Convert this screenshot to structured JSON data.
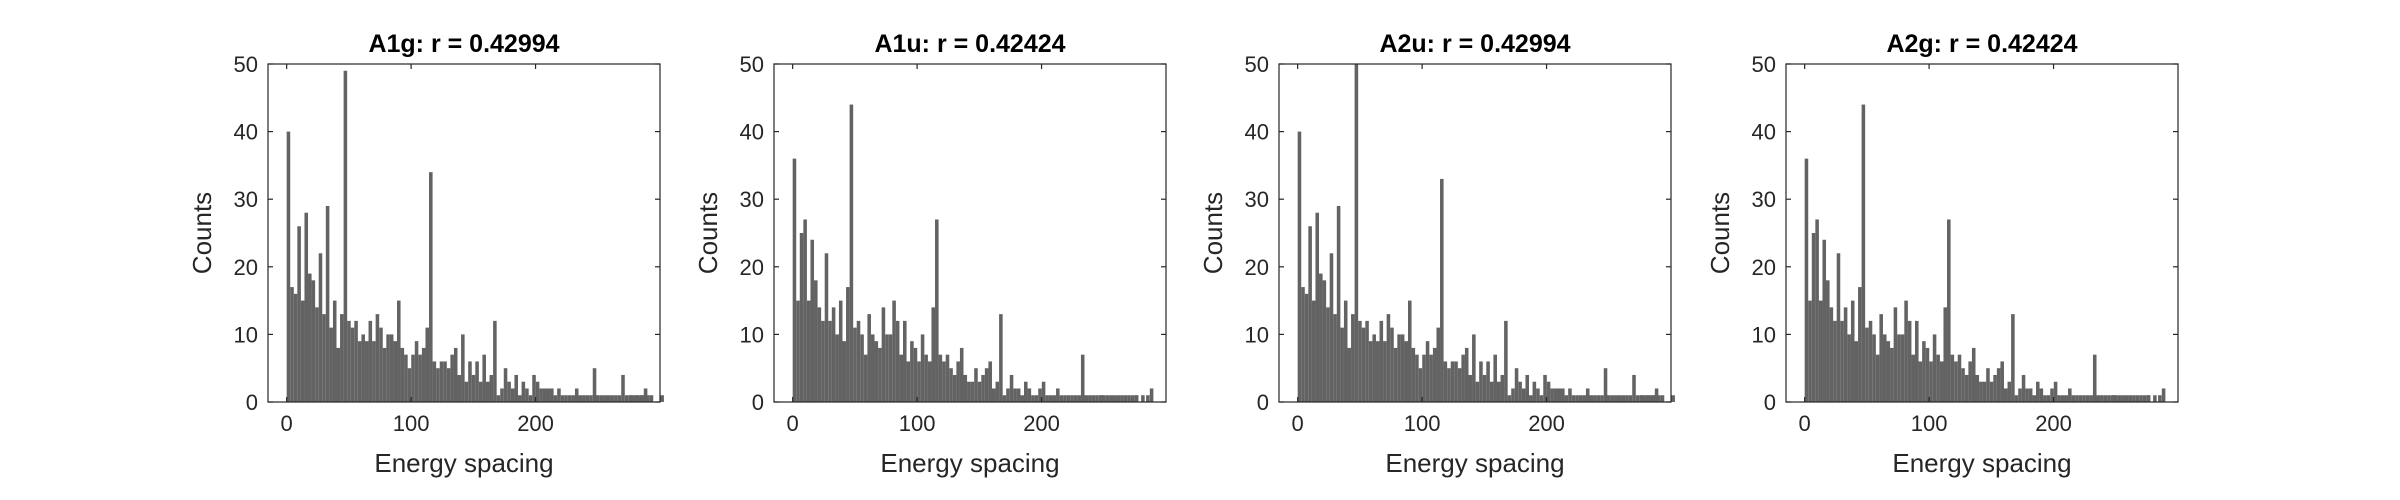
{
  "chart_data": [
    {
      "type": "histogram",
      "title": "A1g: r = 0.42994",
      "xlabel": "Energy spacing",
      "ylabel": "Counts",
      "xlim": [
        -15,
        300
      ],
      "ylim": [
        0,
        50
      ],
      "xticks": [
        0,
        100,
        200
      ],
      "yticks": [
        0,
        10,
        20,
        30,
        40,
        50
      ],
      "bin_width": 2.86,
      "values": [
        40,
        17,
        16,
        26,
        15,
        28,
        19,
        18,
        14,
        22,
        13,
        29,
        11,
        15,
        8,
        13,
        49,
        12,
        11,
        12,
        9,
        10,
        9,
        12,
        9,
        13,
        11,
        8,
        10,
        10,
        9,
        15,
        8,
        7,
        5,
        7,
        9,
        7,
        8,
        11,
        34,
        6,
        5,
        6,
        6,
        5,
        7,
        8,
        4,
        10,
        3,
        6,
        4,
        6,
        3,
        7,
        3,
        4,
        12,
        1,
        2,
        5,
        3,
        2,
        4,
        1,
        3,
        2,
        1,
        4,
        3,
        2,
        2,
        2,
        2,
        1,
        2,
        1,
        1,
        1,
        1,
        2,
        1,
        1,
        1,
        1,
        5,
        1,
        1,
        1,
        1,
        1,
        1,
        1,
        4,
        1,
        1,
        1,
        1,
        1,
        1,
        1,
        1,
        0,
        0,
        1,
        0,
        0,
        0,
        0,
        0,
        0,
        0,
        0,
        0,
        0,
        0,
        0,
        0,
        0,
        0,
        0,
        0,
        0,
        0,
        0,
        0,
        0,
        0,
        0,
        0,
        0,
        0,
        0,
        0,
        0,
        0,
        0,
        0,
        0,
        0,
        0,
        0,
        0,
        0,
        0,
        0,
        0,
        0,
        0,
        0,
        0,
        0,
        0,
        0,
        0,
        0,
        0,
        0,
        0,
        0,
        0,
        0,
        0,
        0,
        0,
        0,
        0,
        0,
        0,
        0,
        0,
        0,
        0,
        0,
        0,
        0,
        0,
        0,
        0,
        0,
        0,
        0,
        0,
        0,
        0,
        0,
        0,
        0,
        0,
        0,
        0,
        0,
        0,
        0,
        0,
        0,
        0,
        0,
        0
      ],
      "tail": {
        "x": [
          247,
          275,
          280,
          284,
          287
        ],
        "counts": [
          1,
          1,
          1,
          1,
          2
        ]
      }
    },
    {
      "type": "histogram",
      "title": "A1u: r = 0.42424",
      "xlabel": "Energy spacing",
      "ylabel": "Counts",
      "xlim": [
        -15,
        300
      ],
      "ylim": [
        0,
        50
      ],
      "xticks": [
        0,
        100,
        200
      ],
      "yticks": [
        0,
        10,
        20,
        30,
        40,
        50
      ],
      "bin_width": 2.86,
      "values": [
        36,
        15,
        25,
        27,
        15,
        24,
        18,
        14,
        12,
        22,
        12,
        14,
        10,
        15,
        9,
        17,
        44,
        11,
        12,
        10,
        7,
        13,
        10,
        9,
        8,
        14,
        10,
        10,
        15,
        12,
        7,
        12,
        6,
        9,
        8,
        6,
        10,
        7,
        6,
        14,
        27,
        7,
        6,
        7,
        5,
        4,
        6,
        8,
        4,
        3,
        3,
        5,
        3,
        4,
        5,
        6,
        2,
        3,
        13,
        1,
        2,
        4,
        2,
        2,
        1,
        3,
        2,
        1,
        1,
        2,
        3,
        1,
        1,
        1,
        2,
        1,
        1,
        1,
        1,
        1,
        1,
        7,
        1,
        1,
        1,
        1,
        1,
        1,
        1,
        1,
        1,
        1,
        1,
        1,
        1,
        1,
        1,
        0,
        0,
        0,
        0,
        0,
        0,
        0,
        0,
        0,
        0,
        0,
        0,
        0,
        0,
        0,
        0,
        0,
        0,
        0,
        0,
        0,
        0,
        0,
        0,
        0,
        0,
        0,
        0,
        0,
        0,
        0,
        0,
        0,
        0,
        0,
        0,
        0,
        0,
        0,
        0,
        0,
        0,
        0,
        0,
        0,
        0,
        0,
        0,
        0,
        0,
        0,
        0,
        0,
        0,
        0,
        0,
        0,
        0,
        0,
        0,
        0,
        0,
        0,
        0,
        0,
        0,
        0,
        0,
        0,
        0,
        0,
        0,
        0,
        0,
        0,
        0,
        0,
        0,
        0,
        0,
        0,
        0,
        0,
        0,
        0,
        0,
        0,
        0,
        0,
        0,
        0,
        0,
        0,
        0,
        0,
        0,
        0,
        0,
        0,
        0,
        0,
        0,
        0
      ],
      "tail": {
        "x": [
          247,
          275,
          280,
          284,
          287
        ],
        "counts": [
          1,
          1,
          1,
          1,
          2
        ]
      }
    },
    {
      "type": "histogram",
      "title": "A2u: r = 0.42994",
      "xlabel": "Energy spacing",
      "ylabel": "Counts",
      "xlim": [
        -15,
        300
      ],
      "ylim": [
        0,
        50
      ],
      "xticks": [
        0,
        100,
        200
      ],
      "yticks": [
        0,
        10,
        20,
        30,
        40,
        50
      ],
      "bin_width": 2.86,
      "values": [
        40,
        17,
        16,
        26,
        15,
        28,
        19,
        18,
        14,
        22,
        13,
        29,
        11,
        15,
        8,
        13,
        50,
        12,
        11,
        12,
        9,
        10,
        9,
        12,
        9,
        13,
        11,
        8,
        10,
        10,
        9,
        15,
        8,
        7,
        5,
        7,
        9,
        7,
        8,
        11,
        33,
        6,
        5,
        6,
        6,
        5,
        7,
        8,
        4,
        10,
        3,
        6,
        4,
        6,
        3,
        7,
        3,
        4,
        12,
        1,
        2,
        5,
        3,
        2,
        4,
        1,
        3,
        2,
        1,
        4,
        3,
        2,
        2,
        2,
        2,
        1,
        2,
        1,
        1,
        1,
        1,
        2,
        1,
        1,
        1,
        1,
        5,
        1,
        1,
        1,
        1,
        1,
        1,
        1,
        4,
        1,
        1,
        1,
        1,
        1,
        1,
        1,
        1,
        0,
        0,
        1,
        0,
        0,
        0,
        0,
        0,
        0,
        0,
        0,
        0,
        0,
        0,
        0,
        0,
        0,
        0,
        0,
        0,
        0,
        0,
        0,
        0,
        0,
        0,
        0,
        0,
        0,
        0,
        0,
        0,
        0,
        0,
        0,
        0,
        0,
        0,
        0,
        0,
        0,
        0,
        0,
        0,
        0,
        0,
        0,
        0,
        0,
        0,
        0,
        0,
        0,
        0,
        0,
        0,
        0,
        0,
        0,
        0,
        0,
        0,
        0,
        0,
        0,
        0,
        0,
        0,
        0,
        0,
        0,
        0,
        0,
        0,
        0,
        0,
        0,
        0,
        0,
        0,
        0,
        0,
        0,
        0,
        0,
        0,
        0,
        0,
        0,
        0,
        0,
        0,
        0,
        0,
        0,
        0,
        0
      ],
      "tail": {
        "x": [
          247,
          275,
          280,
          284,
          287
        ],
        "counts": [
          1,
          1,
          1,
          1,
          2
        ]
      }
    },
    {
      "type": "histogram",
      "title": "A2g: r = 0.42424",
      "xlabel": "Energy spacing",
      "ylabel": "Counts",
      "xlim": [
        -15,
        300
      ],
      "ylim": [
        0,
        50
      ],
      "xticks": [
        0,
        100,
        200
      ],
      "yticks": [
        0,
        10,
        20,
        30,
        40,
        50
      ],
      "bin_width": 2.86,
      "values": [
        36,
        15,
        25,
        27,
        15,
        24,
        18,
        14,
        12,
        22,
        12,
        14,
        10,
        15,
        9,
        17,
        44,
        11,
        12,
        10,
        7,
        13,
        10,
        9,
        8,
        14,
        10,
        10,
        15,
        12,
        7,
        12,
        6,
        9,
        8,
        6,
        10,
        7,
        6,
        14,
        27,
        7,
        6,
        7,
        5,
        4,
        6,
        8,
        4,
        3,
        3,
        5,
        3,
        4,
        5,
        6,
        2,
        3,
        13,
        1,
        2,
        4,
        2,
        2,
        1,
        3,
        2,
        1,
        1,
        2,
        3,
        1,
        1,
        1,
        2,
        1,
        1,
        1,
        1,
        1,
        1,
        7,
        1,
        1,
        1,
        1,
        1,
        1,
        1,
        1,
        1,
        1,
        1,
        1,
        1,
        1,
        1,
        0,
        0,
        0,
        0,
        0,
        0,
        0,
        0,
        0,
        0,
        0,
        0,
        0,
        0,
        0,
        0,
        0,
        0,
        0,
        0,
        0,
        0,
        0,
        0,
        0,
        0,
        0,
        0,
        0,
        0,
        0,
        0,
        0,
        0,
        0,
        0,
        0,
        0,
        0,
        0,
        0,
        0,
        0,
        0,
        0,
        0,
        0,
        0,
        0,
        0,
        0,
        0,
        0,
        0,
        0,
        0,
        0,
        0,
        0,
        0,
        0,
        0,
        0,
        0,
        0,
        0,
        0,
        0,
        0,
        0,
        0,
        0,
        0,
        0,
        0,
        0,
        0,
        0,
        0,
        0,
        0,
        0,
        0,
        0,
        0,
        0,
        0,
        0,
        0,
        0,
        0,
        0,
        0,
        0,
        0,
        0,
        0,
        0,
        0,
        0,
        0,
        0,
        0
      ],
      "tail": {
        "x": [
          247,
          275,
          280,
          284,
          287
        ],
        "counts": [
          1,
          1,
          1,
          1,
          2
        ]
      }
    }
  ],
  "colors": {
    "bar": "#636363",
    "axis": "#262626",
    "background": "#ffffff"
  }
}
